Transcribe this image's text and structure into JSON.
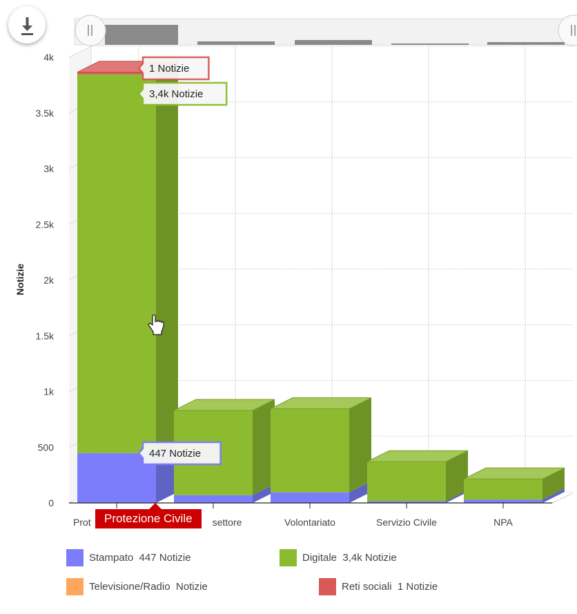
{
  "toolbar": {
    "download_icon": "download-icon"
  },
  "chart_data": {
    "type": "bar",
    "stacked": true,
    "style": "3d",
    "categories": [
      "Protezione Civile",
      "Terzo settore",
      "Volontariato",
      "Servizio Civile",
      "NPA"
    ],
    "category_labels_visible": [
      "Prot",
      "settore",
      "Volontariato",
      "Servizio Civile",
      "NPA"
    ],
    "ylabel": "Notizie",
    "ylim": [
      0,
      4000
    ],
    "yticks": [
      "0",
      "500",
      "1k",
      "1.5k",
      "2k",
      "2.5k",
      "3k",
      "3.5k",
      "4k"
    ],
    "grid": true,
    "series": [
      {
        "name": "Stampato",
        "color": "#7b7dfb",
        "values": [
          447,
          70,
          95,
          15,
          30
        ]
      },
      {
        "name": "Digitale",
        "color": "#8dbb2f",
        "values": [
          3400,
          760,
          750,
          355,
          185
        ]
      },
      {
        "name": "Televisione/Radio",
        "color": "#ffa55c",
        "values": [
          0,
          0,
          0,
          0,
          0
        ]
      },
      {
        "name": "Reti sociali",
        "color": "#d95858",
        "values": [
          1,
          0,
          0,
          0,
          0
        ]
      }
    ],
    "data_labels": [
      {
        "text": "1 Notizie",
        "series": "Reti sociali",
        "color": "#d95858"
      },
      {
        "text": "3,4k Notizie",
        "series": "Digitale",
        "color": "#8dbb2f"
      },
      {
        "text": "447 Notizie",
        "series": "Stampato",
        "color": "#7b7dfb"
      }
    ],
    "legend_position": "bottom",
    "legend": [
      {
        "label": "Stampato  447 Notizie",
        "color": "#7b7dfb"
      },
      {
        "label": "Digitale  3,4k Notizie",
        "color": "#8dbb2f"
      },
      {
        "label": "Televisione/Radio  Notizie",
        "color": "#ffa55c"
      },
      {
        "label": "Reti sociali  1 Notizie",
        "color": "#d95858"
      }
    ],
    "hover_tooltip": "Protezione Civile"
  }
}
